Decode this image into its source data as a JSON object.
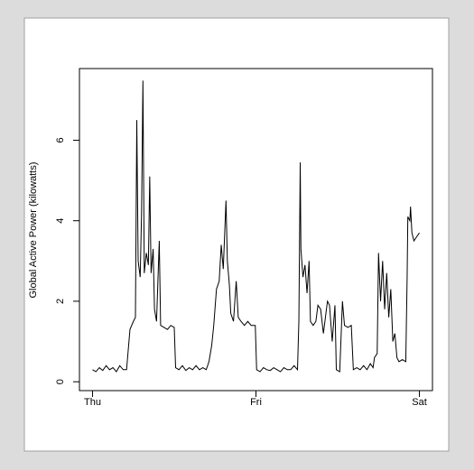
{
  "chart_data": {
    "type": "line",
    "ylabel": "Global Active Power (kilowatts)",
    "xlim": [
      -1.92,
      49.92
    ],
    "xticks": [
      {
        "value": 0,
        "label": "Thu"
      },
      {
        "value": 24,
        "label": "Fri"
      },
      {
        "value": 48,
        "label": "Sat"
      }
    ],
    "ylim": [
      -0.22,
      7.78
    ],
    "yticks": [
      0,
      2,
      4,
      6
    ],
    "grid": false,
    "series": [
      {
        "color": "#000000",
        "x": [
          0,
          0.5,
          1,
          1.5,
          2,
          2.5,
          3,
          3.5,
          4,
          4.5,
          5,
          5.5,
          6,
          6.3,
          6.5,
          6.7,
          7,
          7.2,
          7.4,
          7.6,
          7.9,
          8.2,
          8.4,
          8.6,
          8.9,
          9.1,
          9.4,
          9.8,
          10,
          10.5,
          11,
          11.5,
          12,
          12.2,
          12.7,
          13.2,
          13.7,
          14.2,
          14.7,
          15.2,
          15.7,
          16.2,
          16.7,
          17.1,
          17.5,
          17.8,
          18.2,
          18.6,
          18.9,
          19.2,
          19.6,
          19.8,
          20.1,
          20.3,
          20.7,
          21.1,
          21.4,
          21.8,
          22.3,
          22.8,
          23.3,
          23.9,
          24.1,
          24.6,
          25.1,
          25.6,
          26.1,
          26.6,
          27.1,
          27.6,
          28.1,
          28.6,
          29.1,
          29.6,
          30.1,
          30.3,
          30.5,
          30.6,
          30.9,
          31.2,
          31.5,
          31.8,
          32,
          32.4,
          32.8,
          33.1,
          33.5,
          33.9,
          34.2,
          34.5,
          34.8,
          35.2,
          35.6,
          35.8,
          36.3,
          36.7,
          37,
          37.5,
          38,
          38.3,
          38.8,
          39.3,
          39.8,
          40.3,
          40.8,
          41.2,
          41.4,
          41.8,
          42,
          42.3,
          42.6,
          42.9,
          43.2,
          43.5,
          43.8,
          44.1,
          44.4,
          44.7,
          45,
          45.5,
          46,
          46.2,
          46.3,
          46.6,
          46.7,
          46.9,
          47.2,
          47.6,
          48
        ],
        "values": [
          0.3,
          0.25,
          0.35,
          0.28,
          0.4,
          0.3,
          0.35,
          0.25,
          0.4,
          0.3,
          0.3,
          1.3,
          1.5,
          1.6,
          6.5,
          3.0,
          2.6,
          4.2,
          7.48,
          2.7,
          3.2,
          2.9,
          5.1,
          2.7,
          3.3,
          1.8,
          1.5,
          3.5,
          1.4,
          1.35,
          1.3,
          1.4,
          1.35,
          0.35,
          0.3,
          0.4,
          0.28,
          0.35,
          0.3,
          0.4,
          0.3,
          0.35,
          0.3,
          0.5,
          0.9,
          1.4,
          2.3,
          2.5,
          3.4,
          2.8,
          4.5,
          3.0,
          2.4,
          1.7,
          1.5,
          2.5,
          1.6,
          1.5,
          1.4,
          1.5,
          1.4,
          1.4,
          0.3,
          0.25,
          0.35,
          0.3,
          0.28,
          0.35,
          0.3,
          0.25,
          0.35,
          0.3,
          0.3,
          0.4,
          0.3,
          1.5,
          5.45,
          3.3,
          2.6,
          2.9,
          2.2,
          3.0,
          1.5,
          1.4,
          1.5,
          1.9,
          1.8,
          1.2,
          1.6,
          2.0,
          1.9,
          1.0,
          1.9,
          0.3,
          0.25,
          2.0,
          1.4,
          1.35,
          1.4,
          0.3,
          0.35,
          0.3,
          0.4,
          0.3,
          0.45,
          0.35,
          0.6,
          0.7,
          3.2,
          2.0,
          3.0,
          1.8,
          2.7,
          1.6,
          2.3,
          1.0,
          1.2,
          0.6,
          0.5,
          0.55,
          0.5,
          2.6,
          4.1,
          4.0,
          4.35,
          3.7,
          3.5,
          3.6,
          3.7
        ]
      }
    ]
  }
}
